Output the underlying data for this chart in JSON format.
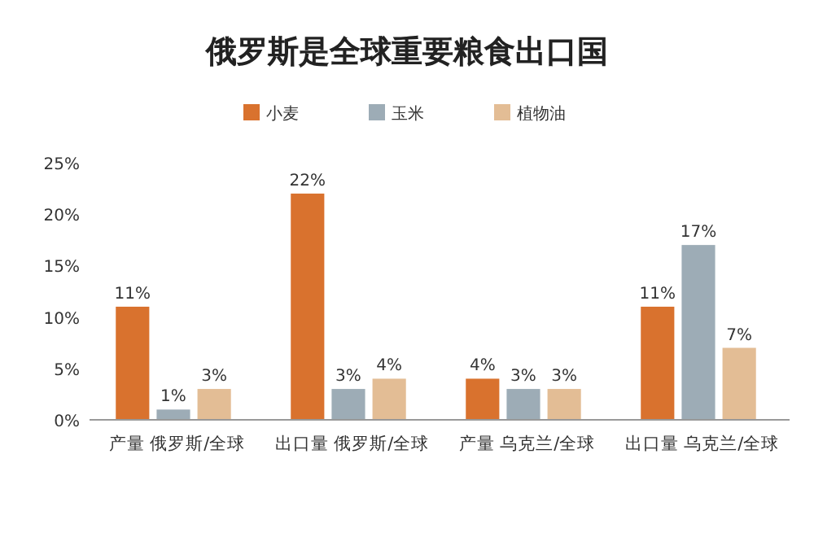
{
  "chart_data": {
    "type": "bar",
    "title": "俄罗斯是全球重要粮食出口国",
    "categories": [
      "产量 俄罗斯/全球",
      "出口量 俄罗斯/全球",
      "产量 乌克兰/全球",
      "出口量 乌克兰/全球"
    ],
    "series": [
      {
        "name": "小麦",
        "color": "#d9722e",
        "values": [
          11,
          22,
          4,
          11
        ],
        "value_labels": [
          "11%",
          "22%",
          "4%",
          "11%"
        ]
      },
      {
        "name": "玉米",
        "color": "#9dacb6",
        "values": [
          1,
          3,
          3,
          17
        ],
        "value_labels": [
          "1%",
          "3%",
          "3%",
          "17%"
        ]
      },
      {
        "name": "植物油",
        "color": "#e3bd95",
        "values": [
          3,
          4,
          3,
          7
        ],
        "value_labels": [
          "3%",
          "4%",
          "3%",
          "7%"
        ]
      }
    ],
    "ylim": [
      0,
      25
    ],
    "yticks": [
      {
        "value": 0,
        "label": "0%"
      },
      {
        "value": 5,
        "label": "5%"
      },
      {
        "value": 10,
        "label": "10%"
      },
      {
        "value": 15,
        "label": "15%"
      },
      {
        "value": 20,
        "label": "20%"
      },
      {
        "value": 25,
        "label": "25%"
      }
    ],
    "legend": "top",
    "grid": false
  }
}
